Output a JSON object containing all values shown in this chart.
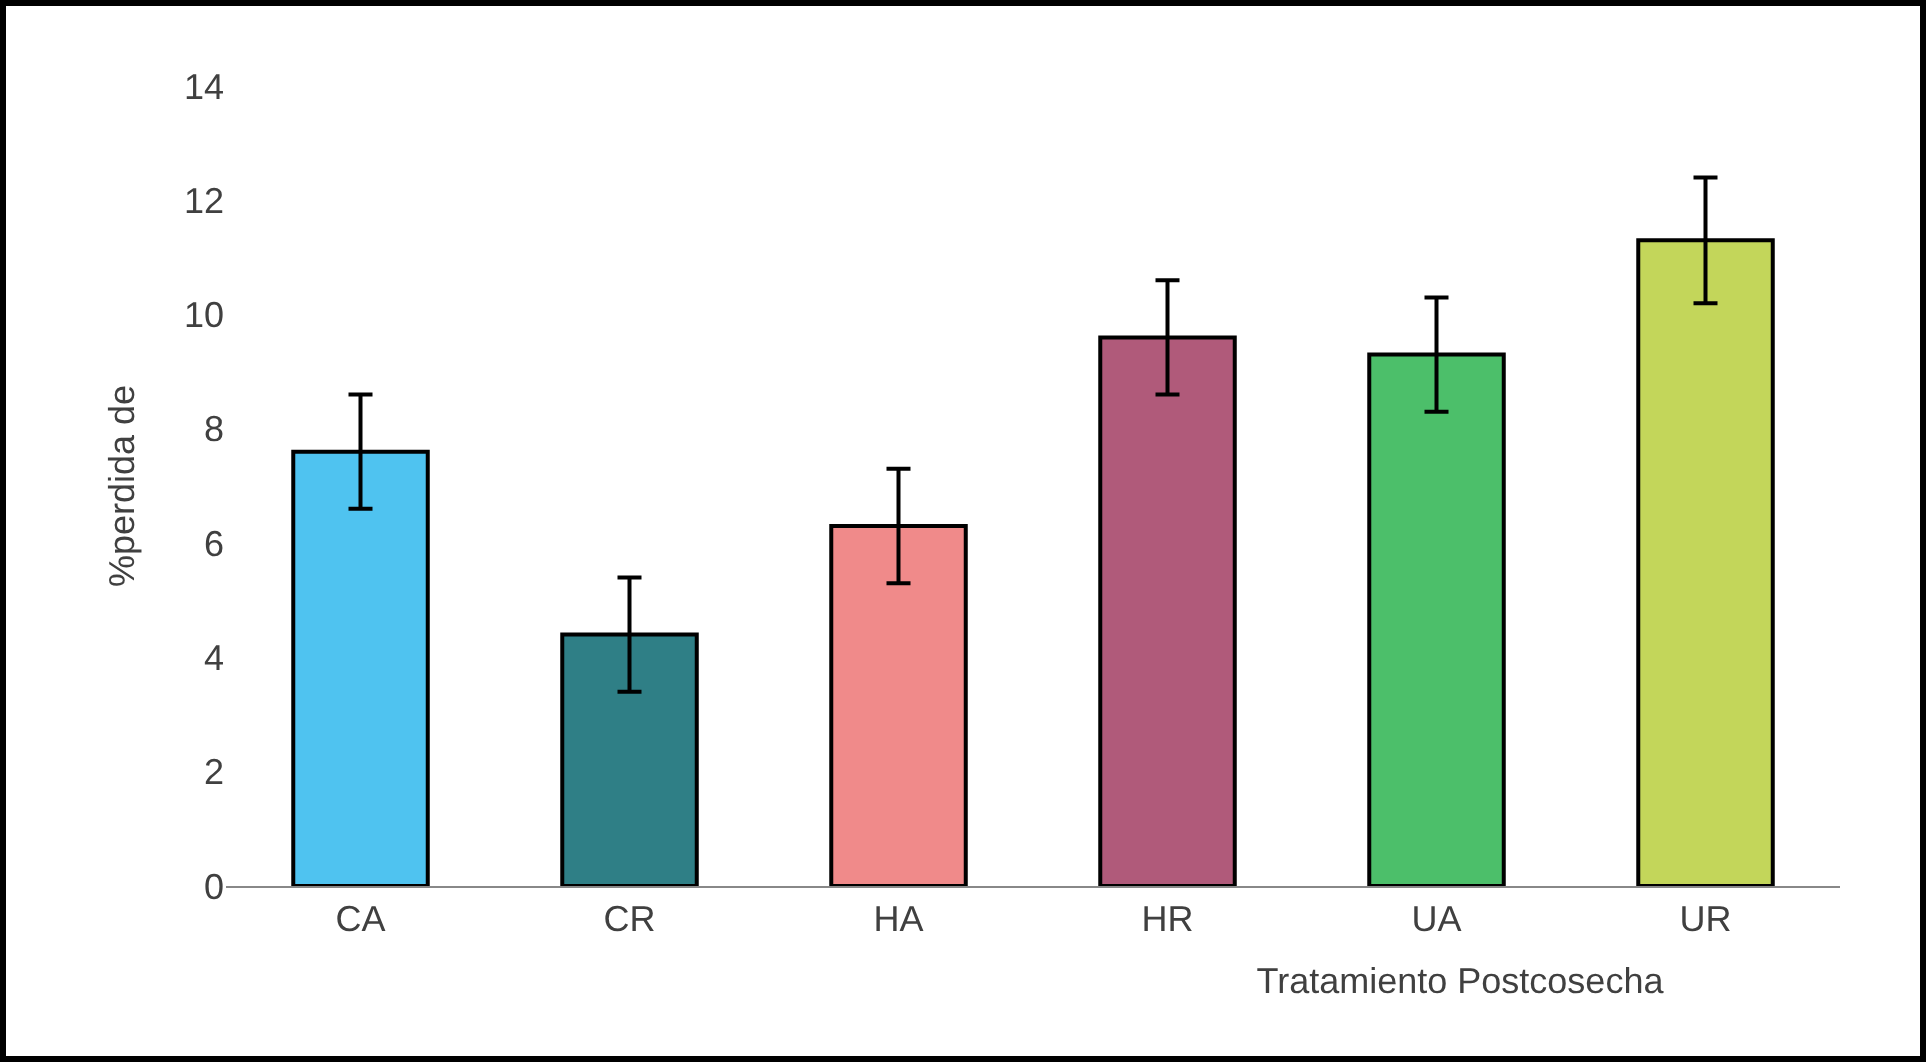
{
  "chart_data": {
    "type": "bar",
    "xlabel": "Tratamiento Postcosecha",
    "ylabel": "%perdida de",
    "categories": [
      "CA",
      "CR",
      "HA",
      "HR",
      "UA",
      "UR"
    ],
    "values": [
      7.6,
      4.4,
      6.3,
      9.6,
      9.3,
      11.3
    ],
    "errors": [
      1,
      1,
      1,
      1,
      1,
      1.1
    ],
    "colors": [
      "#4fc3f0",
      "#2f7f86",
      "#f08a8a",
      "#b05a7a",
      "#4cbf6a",
      "#c3d65a"
    ],
    "ylim": [
      0,
      14
    ],
    "yticks": [
      0,
      2,
      4,
      6,
      8,
      10,
      12,
      14
    ]
  }
}
